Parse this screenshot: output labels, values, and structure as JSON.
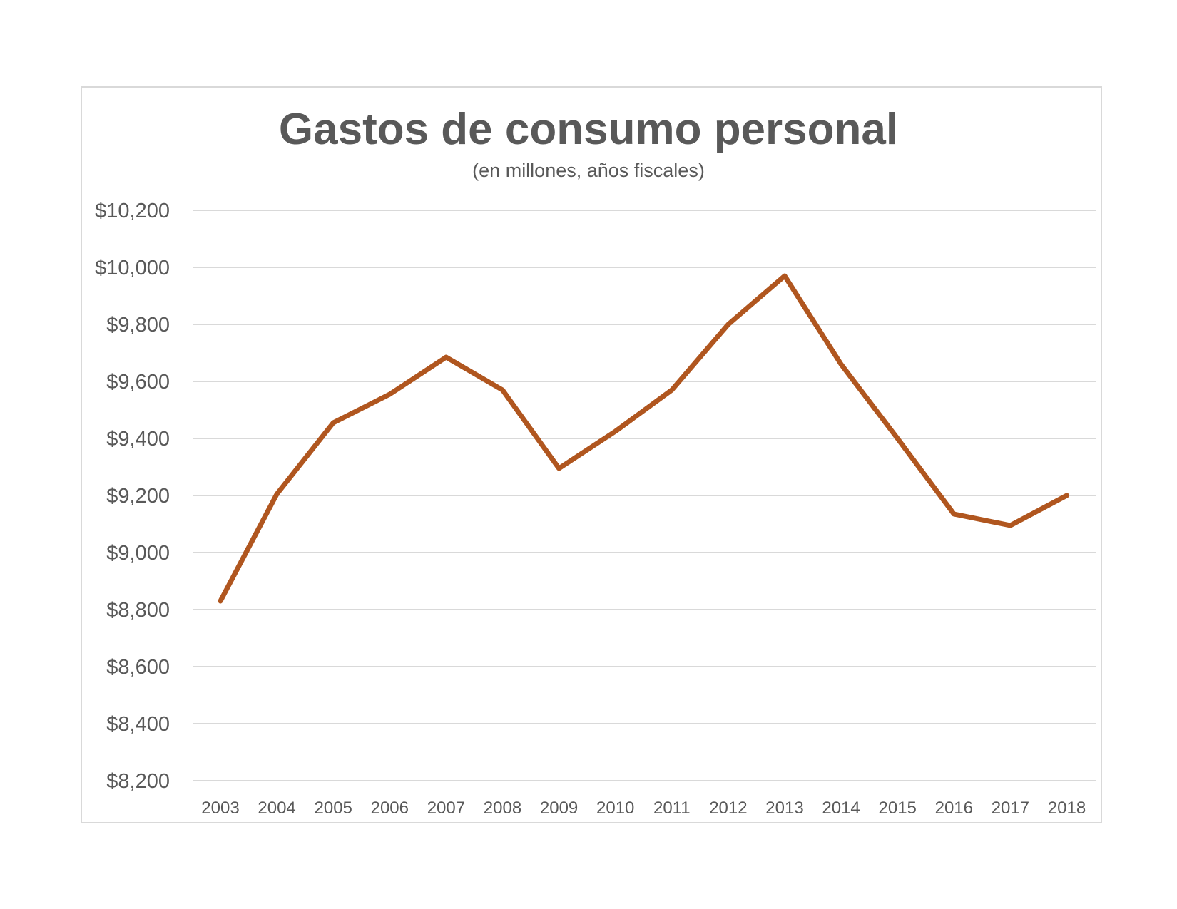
{
  "chart_data": {
    "type": "line",
    "title": "Gastos de consumo personal",
    "subtitle": "(en millones, años fiscales)",
    "xlabel": "",
    "ylabel": "",
    "categories": [
      "2003",
      "2004",
      "2005",
      "2006",
      "2007",
      "2008",
      "2009",
      "2010",
      "2011",
      "2012",
      "2013",
      "2014",
      "2015",
      "2016",
      "2017",
      "2018"
    ],
    "series": [
      {
        "values": [
          8830,
          9205,
          9455,
          9555,
          9685,
          9570,
          9295,
          9425,
          9570,
          9800,
          9970,
          9660,
          9400,
          9135,
          9095,
          9200
        ]
      }
    ],
    "ylim": [
      8200,
      10200
    ],
    "ytick_step": 200,
    "ytick_labels": [
      "$8,200",
      "$8,400",
      "$8,600",
      "$8,800",
      "$9,000",
      "$9,200",
      "$9,400",
      "$9,600",
      "$9,800",
      "$10,000",
      "$10,200"
    ],
    "grid": true,
    "legend": "none",
    "colors": {
      "line": "#b0561f",
      "grid": "#d9d9d9",
      "text": "#595959",
      "frame": "#d9d9d9"
    }
  }
}
